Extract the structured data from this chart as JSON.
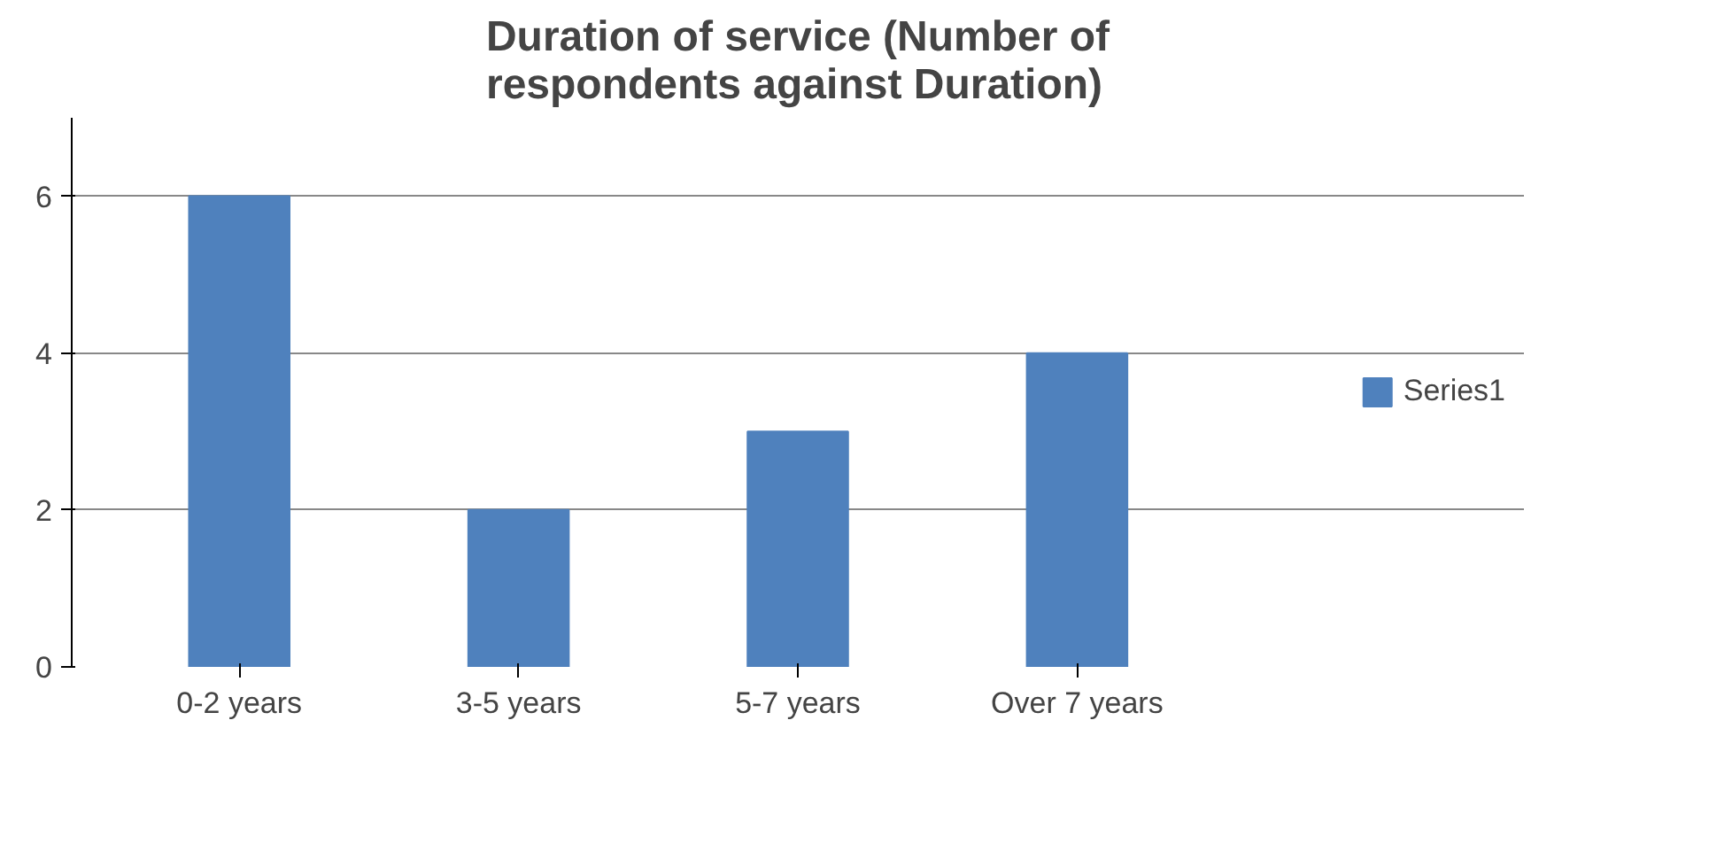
{
  "chart_data": {
    "type": "bar",
    "title": "Duration of service (Number of respondents against Duration)",
    "categories": [
      "0-2 years",
      "3-5 years",
      "5-7 years",
      "Over 7 years"
    ],
    "series": [
      {
        "name": "Series1",
        "color": "#4f81bd",
        "values": [
          6,
          2,
          3,
          4
        ]
      }
    ],
    "ylim": [
      0,
      7
    ],
    "yticks": [
      0,
      2,
      4,
      6
    ],
    "grid": "y",
    "legend": "right"
  }
}
